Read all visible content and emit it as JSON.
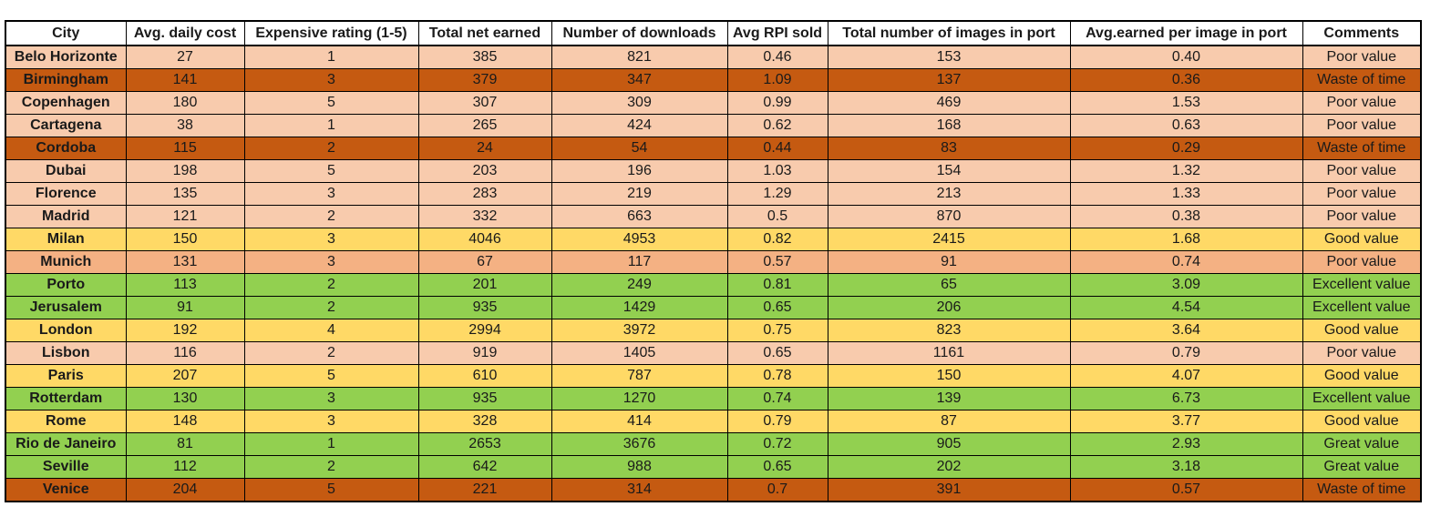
{
  "table": {
    "header": [
      "City",
      "Avg. daily cost",
      "Expensive rating (1-5)",
      "Total net earned",
      "Number of downloads",
      "Avg RPI sold",
      "Total number of images in port",
      "Avg.earned per image in port",
      "Comments"
    ],
    "rows": [
      {
        "cells": [
          "Belo Horizonte",
          "27",
          "1",
          "385",
          "821",
          "0.46",
          "153",
          "0.40",
          "Poor value"
        ],
        "color": "#f8cbad"
      },
      {
        "cells": [
          "Birmingham",
          "141",
          "3",
          "379",
          "347",
          "1.09",
          "137",
          "0.36",
          "Waste of time"
        ],
        "color": "#c55a11"
      },
      {
        "cells": [
          "Copenhagen",
          "180",
          "5",
          "307",
          "309",
          "0.99",
          "469",
          "1.53",
          "Poor value"
        ],
        "color": "#f8cbad"
      },
      {
        "cells": [
          "Cartagena",
          "38",
          "1",
          "265",
          "424",
          "0.62",
          "168",
          "0.63",
          "Poor value"
        ],
        "color": "#f8cbad"
      },
      {
        "cells": [
          "Cordoba",
          "115",
          "2",
          "24",
          "54",
          "0.44",
          "83",
          "0.29",
          "Waste of time"
        ],
        "color": "#c55a11"
      },
      {
        "cells": [
          "Dubai",
          "198",
          "5",
          "203",
          "196",
          "1.03",
          "154",
          "1.32",
          "Poor value"
        ],
        "color": "#f8cbad"
      },
      {
        "cells": [
          "Florence",
          "135",
          "3",
          "283",
          "219",
          "1.29",
          "213",
          "1.33",
          "Poor value"
        ],
        "color": "#f8cbad"
      },
      {
        "cells": [
          "Madrid",
          "121",
          "2",
          "332",
          "663",
          "0.5",
          "870",
          "0.38",
          "Poor value"
        ],
        "color": "#f8cbad"
      },
      {
        "cells": [
          "Milan",
          "150",
          "3",
          "4046",
          "4953",
          "0.82",
          "2415",
          "1.68",
          "Good value"
        ],
        "color": "#ffd966"
      },
      {
        "cells": [
          "Munich",
          "131",
          "3",
          "67",
          "117",
          "0.57",
          "91",
          "0.74",
          "Poor value"
        ],
        "color": "#f4b183"
      },
      {
        "cells": [
          "Porto",
          "113",
          "2",
          "201",
          "249",
          "0.81",
          "65",
          "3.09",
          "Excellent value"
        ],
        "color": "#92d050"
      },
      {
        "cells": [
          "Jerusalem",
          "91",
          "2",
          "935",
          "1429",
          "0.65",
          "206",
          "4.54",
          "Excellent value"
        ],
        "color": "#92d050"
      },
      {
        "cells": [
          "London",
          "192",
          "4",
          "2994",
          "3972",
          "0.75",
          "823",
          "3.64",
          "Good value"
        ],
        "color": "#ffd966"
      },
      {
        "cells": [
          "Lisbon",
          "116",
          "2",
          "919",
          "1405",
          "0.65",
          "1161",
          "0.79",
          "Poor value"
        ],
        "color": "#f8cbad"
      },
      {
        "cells": [
          "Paris",
          "207",
          "5",
          "610",
          "787",
          "0.78",
          "150",
          "4.07",
          "Good value"
        ],
        "color": "#ffd966"
      },
      {
        "cells": [
          "Rotterdam",
          "130",
          "3",
          "935",
          "1270",
          "0.74",
          "139",
          "6.73",
          "Excellent value"
        ],
        "color": "#92d050"
      },
      {
        "cells": [
          "Rome",
          "148",
          "3",
          "328",
          "414",
          "0.79",
          "87",
          "3.77",
          "Good value"
        ],
        "color": "#ffd966"
      },
      {
        "cells": [
          "Rio de Janeiro",
          "81",
          "1",
          "2653",
          "3676",
          "0.72",
          "905",
          "2.93",
          "Great value"
        ],
        "color": "#92d050"
      },
      {
        "cells": [
          "Seville",
          "112",
          "2",
          "642",
          "988",
          "0.65",
          "202",
          "3.18",
          "Great value"
        ],
        "color": "#92d050"
      },
      {
        "cells": [
          "Venice",
          "204",
          "5",
          "221",
          "314",
          "0.7",
          "391",
          "0.57",
          "Waste of time"
        ],
        "color": "#c55a11"
      }
    ]
  }
}
